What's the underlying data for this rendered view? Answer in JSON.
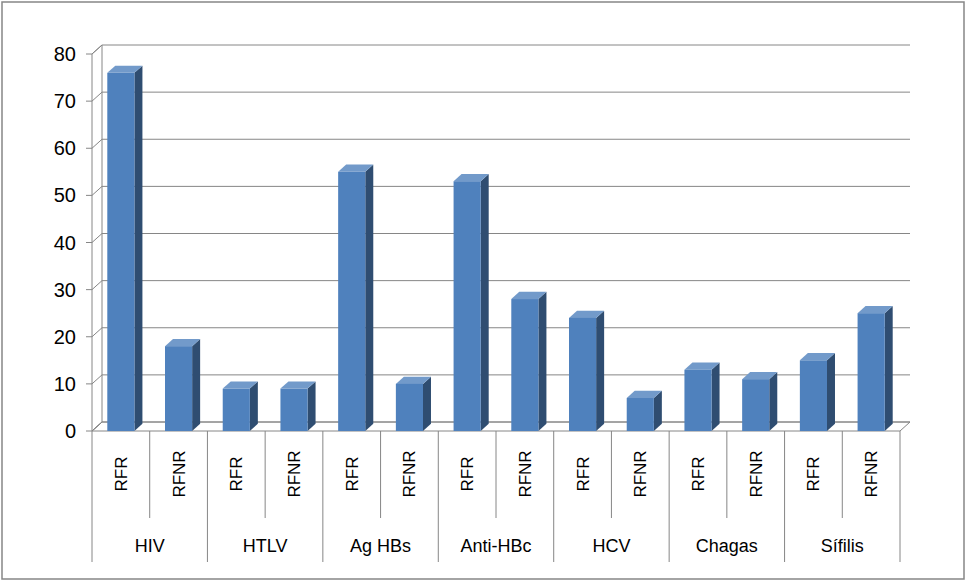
{
  "chart_data": {
    "type": "bar",
    "categories": [
      "RFR",
      "RFNR",
      "RFR",
      "RFNR",
      "RFR",
      "RFNR",
      "RFR",
      "RFNR",
      "RFR",
      "RFNR",
      "RFR",
      "RFNR",
      "RFR",
      "RFNR"
    ],
    "groups": [
      "HIV",
      "HTLV",
      "Ag HBs",
      "Anti-HBc",
      "HCV",
      "Chagas",
      "Sífilis"
    ],
    "values": [
      76,
      18,
      9,
      9,
      55,
      10,
      53,
      28,
      24,
      7,
      13,
      11,
      15,
      25
    ],
    "color": "#4f81bd",
    "ylim": [
      0,
      80
    ],
    "yticks": [
      0,
      10,
      20,
      30,
      40,
      50,
      60,
      70,
      80
    ],
    "grid": true
  }
}
